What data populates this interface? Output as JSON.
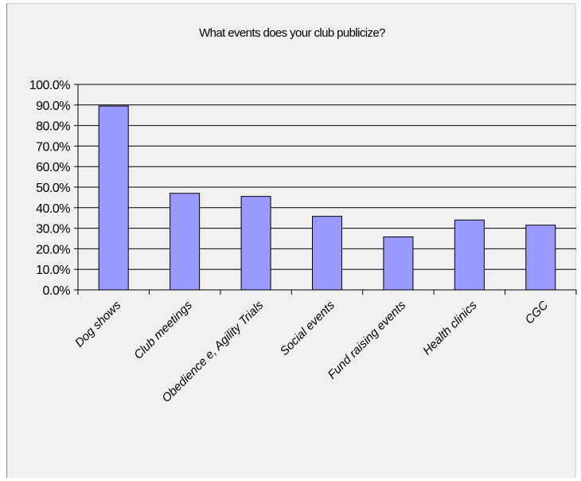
{
  "chart_data": {
    "type": "bar",
    "title": "What events does your club publicize?",
    "xlabel": "",
    "ylabel": "",
    "categories": [
      "Dog shows",
      "Club meetings",
      "Obedience e, Agility Trials",
      "Social events",
      "Fund raising events",
      "Health clinics",
      "CGC"
    ],
    "values": [
      89.5,
      47.0,
      45.5,
      35.8,
      25.8,
      34.0,
      31.5
    ],
    "ylim": [
      0,
      100
    ],
    "yticks": [
      "0.0%",
      "10.0%",
      "20.0%",
      "30.0%",
      "40.0%",
      "50.0%",
      "60.0%",
      "70.0%",
      "80.0%",
      "90.0%",
      "100.0%"
    ],
    "grid": true,
    "legend": "none",
    "colors": {
      "bar_fill": "#9999ff",
      "bar_stroke": "#000000",
      "grid": "#000000",
      "background": "#f0f0f0"
    }
  }
}
